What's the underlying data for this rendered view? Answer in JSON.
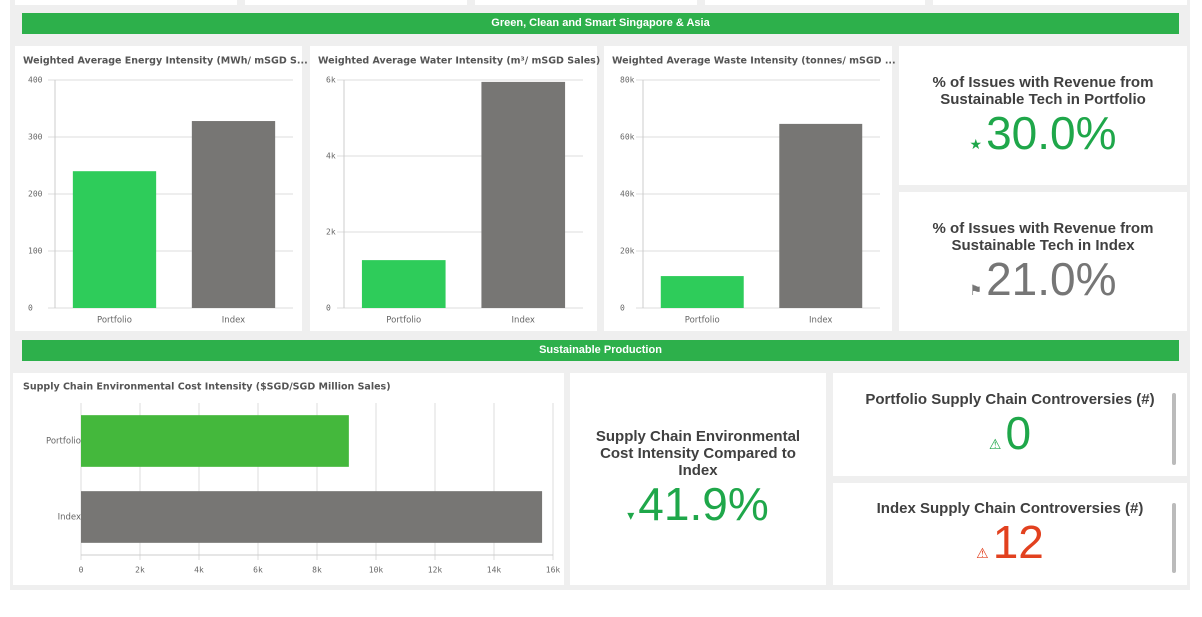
{
  "banners": [
    "Green, Clean and Smart Singapore & Asia",
    "Sustainable Production"
  ],
  "chart_data": [
    {
      "type": "bar",
      "title": "Weighted Average Energy Intensity (MWh/ mSGD S...",
      "categories": [
        "Portfolio",
        "Index"
      ],
      "values": [
        240,
        328
      ],
      "colors": [
        "#2ecc5a",
        "#777674"
      ],
      "ylim": [
        0,
        400
      ],
      "yticks": [
        0,
        100,
        200,
        300,
        400
      ],
      "grid": true
    },
    {
      "type": "bar",
      "title": "Weighted Average Water Intensity (m³/ mSGD Sales)",
      "categories": [
        "Portfolio",
        "Index"
      ],
      "values": [
        1260,
        5950
      ],
      "colors": [
        "#2ecc5a",
        "#777674"
      ],
      "ylim": [
        0,
        6000
      ],
      "yticks": [
        0,
        {
          "value": 2000,
          "label": "2k"
        },
        {
          "value": 4000,
          "label": "4k"
        },
        {
          "value": 6000,
          "label": "6k"
        }
      ],
      "grid": true
    },
    {
      "type": "bar",
      "title": "Weighted Average Waste Intensity (tonnes/ mSGD ...",
      "categories": [
        "Portfolio",
        "Index"
      ],
      "values": [
        11200,
        64600
      ],
      "colors": [
        "#2ecc5a",
        "#777674"
      ],
      "ylim": [
        0,
        80000
      ],
      "yticks": [
        0,
        {
          "value": 20000,
          "label": "20k"
        },
        {
          "value": 40000,
          "label": "40k"
        },
        {
          "value": 60000,
          "label": "60k"
        },
        {
          "value": 80000,
          "label": "80k"
        }
      ],
      "grid": true
    },
    {
      "type": "hbar",
      "title": "Supply Chain Environmental Cost Intensity ($SGD/SGD Million Sales)",
      "categories": [
        "Portfolio",
        "Index"
      ],
      "values": [
        9080,
        15630
      ],
      "colors": [
        "#44b83c",
        "#777674"
      ],
      "xlim": [
        0,
        16000
      ],
      "xticks": [
        0,
        {
          "value": 2000,
          "label": "2k"
        },
        {
          "value": 4000,
          "label": "4k"
        },
        {
          "value": 6000,
          "label": "6k"
        },
        {
          "value": 8000,
          "label": "8k"
        },
        {
          "value": 10000,
          "label": "10k"
        },
        {
          "value": 12000,
          "label": "12k"
        },
        {
          "value": 14000,
          "label": "14k"
        },
        {
          "value": 16000,
          "label": "16k"
        }
      ],
      "grid": true
    }
  ],
  "kpis": [
    {
      "title": "% of Issues with Revenue from Sustainable Tech in Portfolio",
      "value": "30.0%",
      "color": "#1fa74a"
    },
    {
      "title": "% of Issues with Revenue from Sustainable Tech in Index",
      "value": "21.0%",
      "color": "#767676"
    },
    {
      "title": "Supply Chain Environmental Cost Intensity Compared to Index",
      "value": "41.9%",
      "color": "#1fa74a"
    },
    {
      "title": "Portfolio Supply Chain Controversies (#)",
      "value": "0",
      "color": "#1fa74a"
    },
    {
      "title": "Index Supply Chain Controversies (#)",
      "value": "12",
      "color": "#e2411f"
    }
  ]
}
